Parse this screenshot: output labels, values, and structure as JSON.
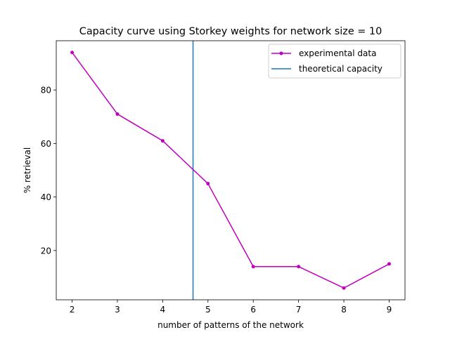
{
  "chart_data": {
    "type": "line",
    "title": "Capacity curve using Storkey weights for network size = 10",
    "xlabel": "number of patterns of the network",
    "ylabel": "% retrieval",
    "xlim": [
      1.65,
      9.35
    ],
    "ylim": [
      1.6,
      98.4
    ],
    "xticks": [
      2,
      3,
      4,
      5,
      6,
      7,
      8,
      9
    ],
    "yticks": [
      20,
      40,
      60,
      80
    ],
    "series": [
      {
        "name": "experimental data",
        "color": "#bf00bf",
        "marker": "circle",
        "x": [
          2,
          3,
          4,
          5,
          6,
          7,
          8,
          9
        ],
        "y": [
          94,
          71,
          61,
          45,
          14,
          14,
          6,
          15
        ]
      }
    ],
    "vlines": [
      {
        "name": "theoretical capacity",
        "color": "#1f77b4",
        "x": 4.67
      }
    ],
    "legend": {
      "position": "top-right",
      "entries": [
        "experimental data",
        "theoretical capacity"
      ]
    },
    "grid": false
  }
}
